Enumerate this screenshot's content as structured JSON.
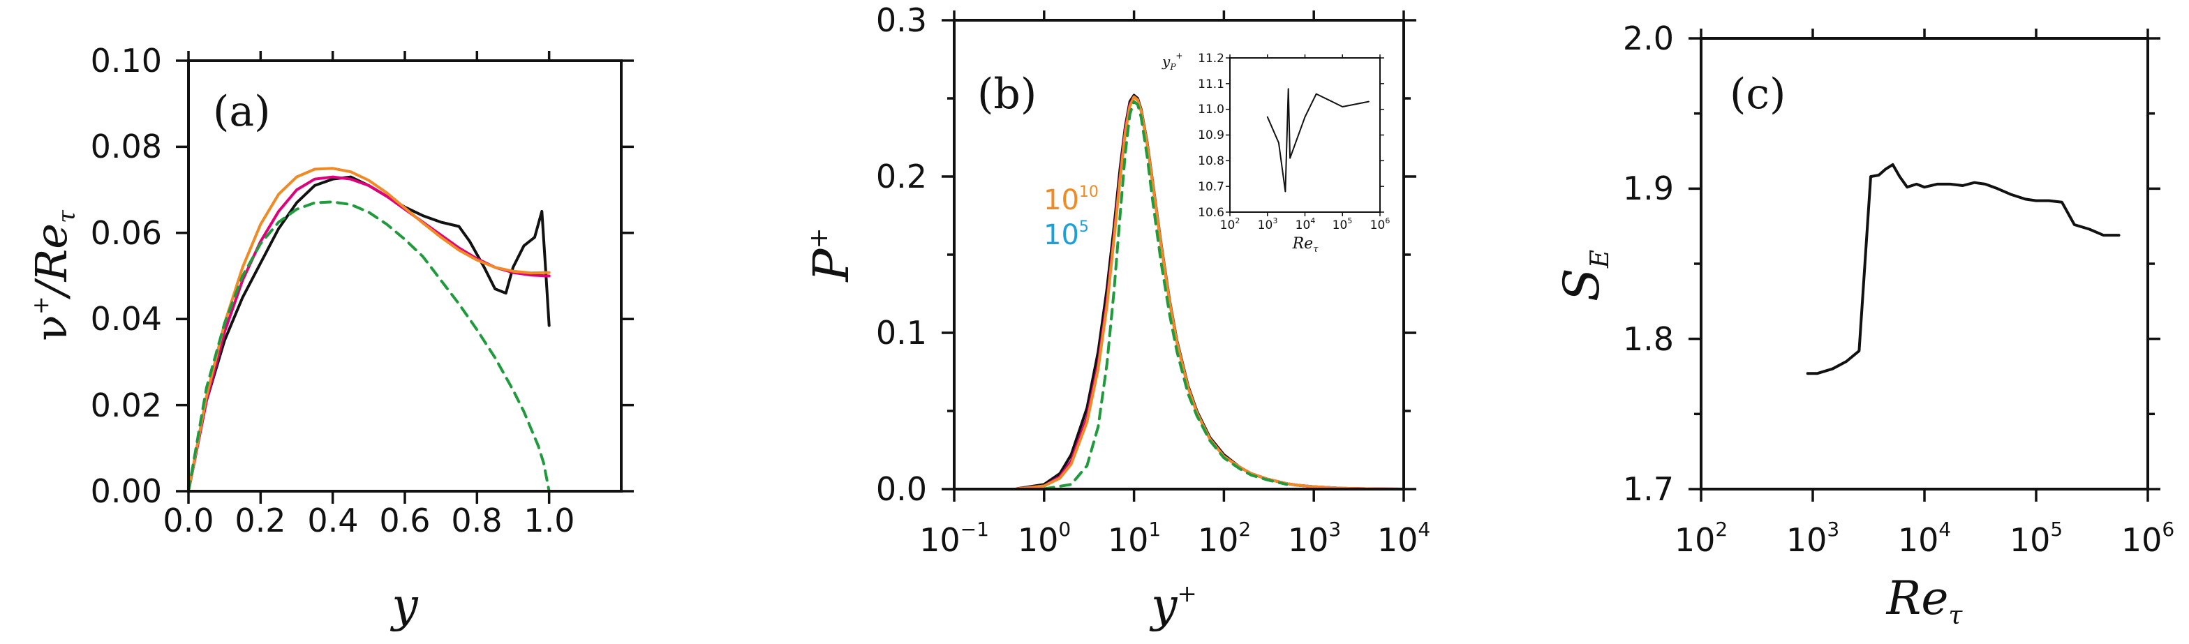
{
  "chart_data": [
    {
      "panel": "(a)",
      "type": "line",
      "xlabel": "y",
      "ylabel": "ν⁺/Re_τ",
      "ylabel_main": "ν",
      "ylabel_sup": "+",
      "ylabel_denom": "/Re",
      "ylabel_sub": "τ",
      "xlim": [
        0,
        1.2
      ],
      "ylim": [
        0,
        0.1
      ],
      "xticks": [
        0.0,
        0.2,
        0.4,
        0.6,
        0.8,
        1.0
      ],
      "xtick_labels": [
        "0.0",
        "0.2",
        "0.4",
        "0.6",
        "0.8",
        "1.0"
      ],
      "yticks": [
        0.0,
        0.02,
        0.04,
        0.06,
        0.08,
        0.1
      ],
      "ytick_labels": [
        "0.00",
        "0.02",
        "0.04",
        "0.06",
        "0.08",
        "0.10"
      ],
      "series": [
        {
          "name": "black",
          "color": "#111111",
          "dash": "",
          "x": [
            0,
            0.05,
            0.1,
            0.15,
            0.2,
            0.25,
            0.3,
            0.35,
            0.4,
            0.45,
            0.5,
            0.55,
            0.6,
            0.65,
            0.7,
            0.75,
            0.78,
            0.82,
            0.85,
            0.88,
            0.9,
            0.93,
            0.96,
            0.98,
            0.99,
            1.0
          ],
          "y": [
            0,
            0.021,
            0.035,
            0.045,
            0.053,
            0.061,
            0.067,
            0.071,
            0.0725,
            0.073,
            0.071,
            0.0685,
            0.066,
            0.064,
            0.0625,
            0.0615,
            0.058,
            0.052,
            0.047,
            0.046,
            0.052,
            0.057,
            0.059,
            0.065,
            0.052,
            0.0385
          ]
        },
        {
          "name": "magenta",
          "color": "#e0007a",
          "dash": "",
          "x": [
            0,
            0.05,
            0.1,
            0.15,
            0.2,
            0.25,
            0.3,
            0.35,
            0.4,
            0.45,
            0.5,
            0.55,
            0.6,
            0.65,
            0.7,
            0.75,
            0.8,
            0.85,
            0.9,
            0.95,
            1.0
          ],
          "y": [
            0,
            0.021,
            0.037,
            0.049,
            0.058,
            0.065,
            0.07,
            0.0725,
            0.073,
            0.0725,
            0.071,
            0.0685,
            0.0655,
            0.0625,
            0.0595,
            0.0565,
            0.054,
            0.052,
            0.0508,
            0.0502,
            0.05
          ]
        },
        {
          "name": "orange",
          "color": "#f08a24",
          "dash": "",
          "x": [
            0,
            0.05,
            0.1,
            0.15,
            0.2,
            0.25,
            0.3,
            0.35,
            0.4,
            0.45,
            0.5,
            0.55,
            0.6,
            0.65,
            0.7,
            0.75,
            0.8,
            0.85,
            0.9,
            0.95,
            1.0
          ],
          "y": [
            0,
            0.022,
            0.039,
            0.052,
            0.062,
            0.069,
            0.073,
            0.0748,
            0.075,
            0.0742,
            0.0722,
            0.0693,
            0.0658,
            0.0623,
            0.059,
            0.056,
            0.0537,
            0.052,
            0.0511,
            0.0507,
            0.0508
          ]
        },
        {
          "name": "green dashed",
          "color": "#1f9a3c",
          "dash": "14 10",
          "x": [
            0,
            0.05,
            0.1,
            0.15,
            0.2,
            0.25,
            0.3,
            0.35,
            0.4,
            0.45,
            0.5,
            0.55,
            0.6,
            0.65,
            0.7,
            0.75,
            0.8,
            0.85,
            0.9,
            0.93,
            0.95,
            0.97,
            0.985,
            1.0
          ],
          "y": [
            0,
            0.024,
            0.039,
            0.05,
            0.0575,
            0.0625,
            0.0655,
            0.067,
            0.0672,
            0.0666,
            0.0648,
            0.062,
            0.0585,
            0.0545,
            0.049,
            0.0435,
            0.0375,
            0.031,
            0.0235,
            0.0185,
            0.0145,
            0.0105,
            0.0065,
            0.0
          ]
        }
      ]
    },
    {
      "panel": "(b)",
      "type": "line",
      "xscale": "log",
      "xlabel": "y",
      "xlabel_sup": "+",
      "ylabel": "P",
      "ylabel_sup": "+",
      "xlim": [
        0.1,
        10000
      ],
      "ylim": [
        0,
        0.3
      ],
      "xticks": [
        0.1,
        1,
        10,
        100,
        1000,
        10000
      ],
      "xtick_bases": [
        "10",
        "10",
        "10",
        "10",
        "10",
        "10"
      ],
      "xtick_exps": [
        "−1",
        "0",
        "1",
        "2",
        "3",
        "4"
      ],
      "yticks": [
        0.0,
        0.1,
        0.2,
        0.3
      ],
      "ytick_labels": [
        "0.0",
        "0.1",
        "0.2",
        "0.3"
      ],
      "annotations": [
        {
          "base": "10",
          "exp": "10",
          "color": "#f08a24"
        },
        {
          "base": "10",
          "exp": "5",
          "color": "#1ba0d8"
        }
      ],
      "series": [
        {
          "name": "black",
          "color": "#111111",
          "dash": "",
          "x": [
            0.5,
            1,
            1.5,
            2,
            3,
            4,
            5,
            6,
            7,
            8,
            9,
            10,
            11,
            12,
            14,
            16,
            20,
            25,
            30,
            40,
            50,
            70,
            100,
            150,
            200,
            300,
            500,
            700,
            1000,
            2000,
            3000,
            5000,
            10000
          ],
          "y": [
            0.0003,
            0.003,
            0.01,
            0.022,
            0.052,
            0.088,
            0.128,
            0.168,
            0.205,
            0.232,
            0.248,
            0.252,
            0.25,
            0.243,
            0.222,
            0.198,
            0.157,
            0.12,
            0.095,
            0.066,
            0.05,
            0.033,
            0.022,
            0.014,
            0.01,
            0.0065,
            0.0035,
            0.0023,
            0.0015,
            0.0006,
            0.0003,
            0.0001,
            0
          ]
        },
        {
          "name": "magenta",
          "color": "#e0007a",
          "dash": "",
          "x": [
            0.5,
            1,
            1.5,
            2,
            3,
            4,
            5,
            6,
            7,
            8,
            9,
            10,
            11,
            12,
            14,
            16,
            20,
            25,
            30,
            40,
            50,
            70,
            100,
            150,
            200,
            300,
            500,
            700,
            1000,
            2000,
            3000,
            5000,
            10000
          ],
          "y": [
            0.0002,
            0.002,
            0.008,
            0.018,
            0.046,
            0.08,
            0.12,
            0.162,
            0.2,
            0.23,
            0.246,
            0.251,
            0.249,
            0.242,
            0.221,
            0.197,
            0.156,
            0.119,
            0.094,
            0.065,
            0.049,
            0.032,
            0.021,
            0.014,
            0.01,
            0.0065,
            0.0035,
            0.0023,
            0.0015,
            0.0006,
            0.0003,
            0.0001,
            0
          ]
        },
        {
          "name": "orange",
          "color": "#f08a24",
          "dash": "",
          "x": [
            0.5,
            1,
            1.5,
            2,
            3,
            4,
            5,
            6,
            7,
            8,
            9,
            10,
            11,
            12,
            14,
            16,
            20,
            25,
            30,
            40,
            50,
            70,
            100,
            150,
            200,
            300,
            500,
            700,
            1000,
            2000,
            3000,
            5000,
            10000
          ],
          "y": [
            0.0002,
            0.002,
            0.007,
            0.016,
            0.043,
            0.077,
            0.117,
            0.16,
            0.198,
            0.228,
            0.245,
            0.251,
            0.249,
            0.242,
            0.221,
            0.197,
            0.156,
            0.119,
            0.094,
            0.065,
            0.049,
            0.032,
            0.021,
            0.014,
            0.01,
            0.0065,
            0.0035,
            0.0023,
            0.0015,
            0.0006,
            0.0003,
            0.0001,
            0
          ]
        },
        {
          "name": "green dashed",
          "color": "#1f9a3c",
          "dash": "14 10",
          "x": [
            1,
            2,
            3,
            4,
            5,
            6,
            7,
            8,
            9,
            10,
            11,
            12,
            14,
            16,
            20,
            25,
            30,
            40,
            50,
            70,
            100,
            150,
            200,
            300,
            500
          ],
          "y": [
            0.0002,
            0.003,
            0.015,
            0.04,
            0.08,
            0.127,
            0.175,
            0.215,
            0.24,
            0.248,
            0.246,
            0.238,
            0.213,
            0.186,
            0.145,
            0.111,
            0.088,
            0.061,
            0.047,
            0.031,
            0.02,
            0.013,
            0.009,
            0.006,
            0.003
          ]
        }
      ],
      "inset": {
        "type": "line",
        "xscale": "log",
        "xlabel": "Re",
        "xlabel_sub": "τ",
        "ylabel": "y",
        "ylabel_sub": "P",
        "ylabel_sup": "+",
        "xlim": [
          100,
          1000000
        ],
        "ylim": [
          10.6,
          11.2
        ],
        "xtick_bases": [
          "10",
          "10",
          "10",
          "10",
          "10"
        ],
        "xtick_exps": [
          "2",
          "3",
          "4",
          "5",
          "6"
        ],
        "ytick_labels": [
          "10.6",
          "10.7",
          "10.8",
          "10.9",
          "11.0",
          "11.1",
          "11.2"
        ],
        "series": [
          {
            "name": "y_P",
            "color": "#111111",
            "x": [
              1000,
              2000,
              3000,
              3600,
              4000,
              10000,
              20000,
              100000,
              500000
            ],
            "y": [
              10.97,
              10.87,
              10.68,
              11.08,
              10.81,
              10.97,
              11.06,
              11.01,
              11.03
            ]
          }
        ]
      }
    },
    {
      "panel": "(c)",
      "type": "line",
      "xscale": "log",
      "xlabel": "Re",
      "xlabel_sub": "τ",
      "ylabel": "S",
      "ylabel_sub": "E",
      "xlim": [
        100,
        1000000
      ],
      "ylim": [
        1.7,
        2.0
      ],
      "xtick_bases": [
        "10",
        "10",
        "10",
        "10",
        "10"
      ],
      "xtick_exps": [
        "2",
        "3",
        "4",
        "5",
        "6"
      ],
      "yticks": [
        1.7,
        1.8,
        1.9,
        2.0
      ],
      "ytick_labels": [
        "1.7",
        "1.8",
        "1.9",
        "2.0"
      ],
      "series": [
        {
          "name": "S_E",
          "color": "#111111",
          "dash": "",
          "x": [
            900,
            1100,
            1500,
            2000,
            2600,
            3300,
            3900,
            4500,
            5200,
            6000,
            7000,
            8500,
            10000,
            13000,
            17000,
            22000,
            28000,
            35000,
            45000,
            60000,
            80000,
            100000,
            130000,
            170000,
            220000,
            300000,
            400000,
            550000
          ],
          "y": [
            1.777,
            1.777,
            1.78,
            1.785,
            1.792,
            1.908,
            1.909,
            1.913,
            1.916,
            1.908,
            1.901,
            1.903,
            1.901,
            1.903,
            1.903,
            1.902,
            1.904,
            1.903,
            1.9,
            1.896,
            1.893,
            1.892,
            1.892,
            1.891,
            1.876,
            1.873,
            1.869,
            1.869
          ]
        }
      ]
    }
  ]
}
